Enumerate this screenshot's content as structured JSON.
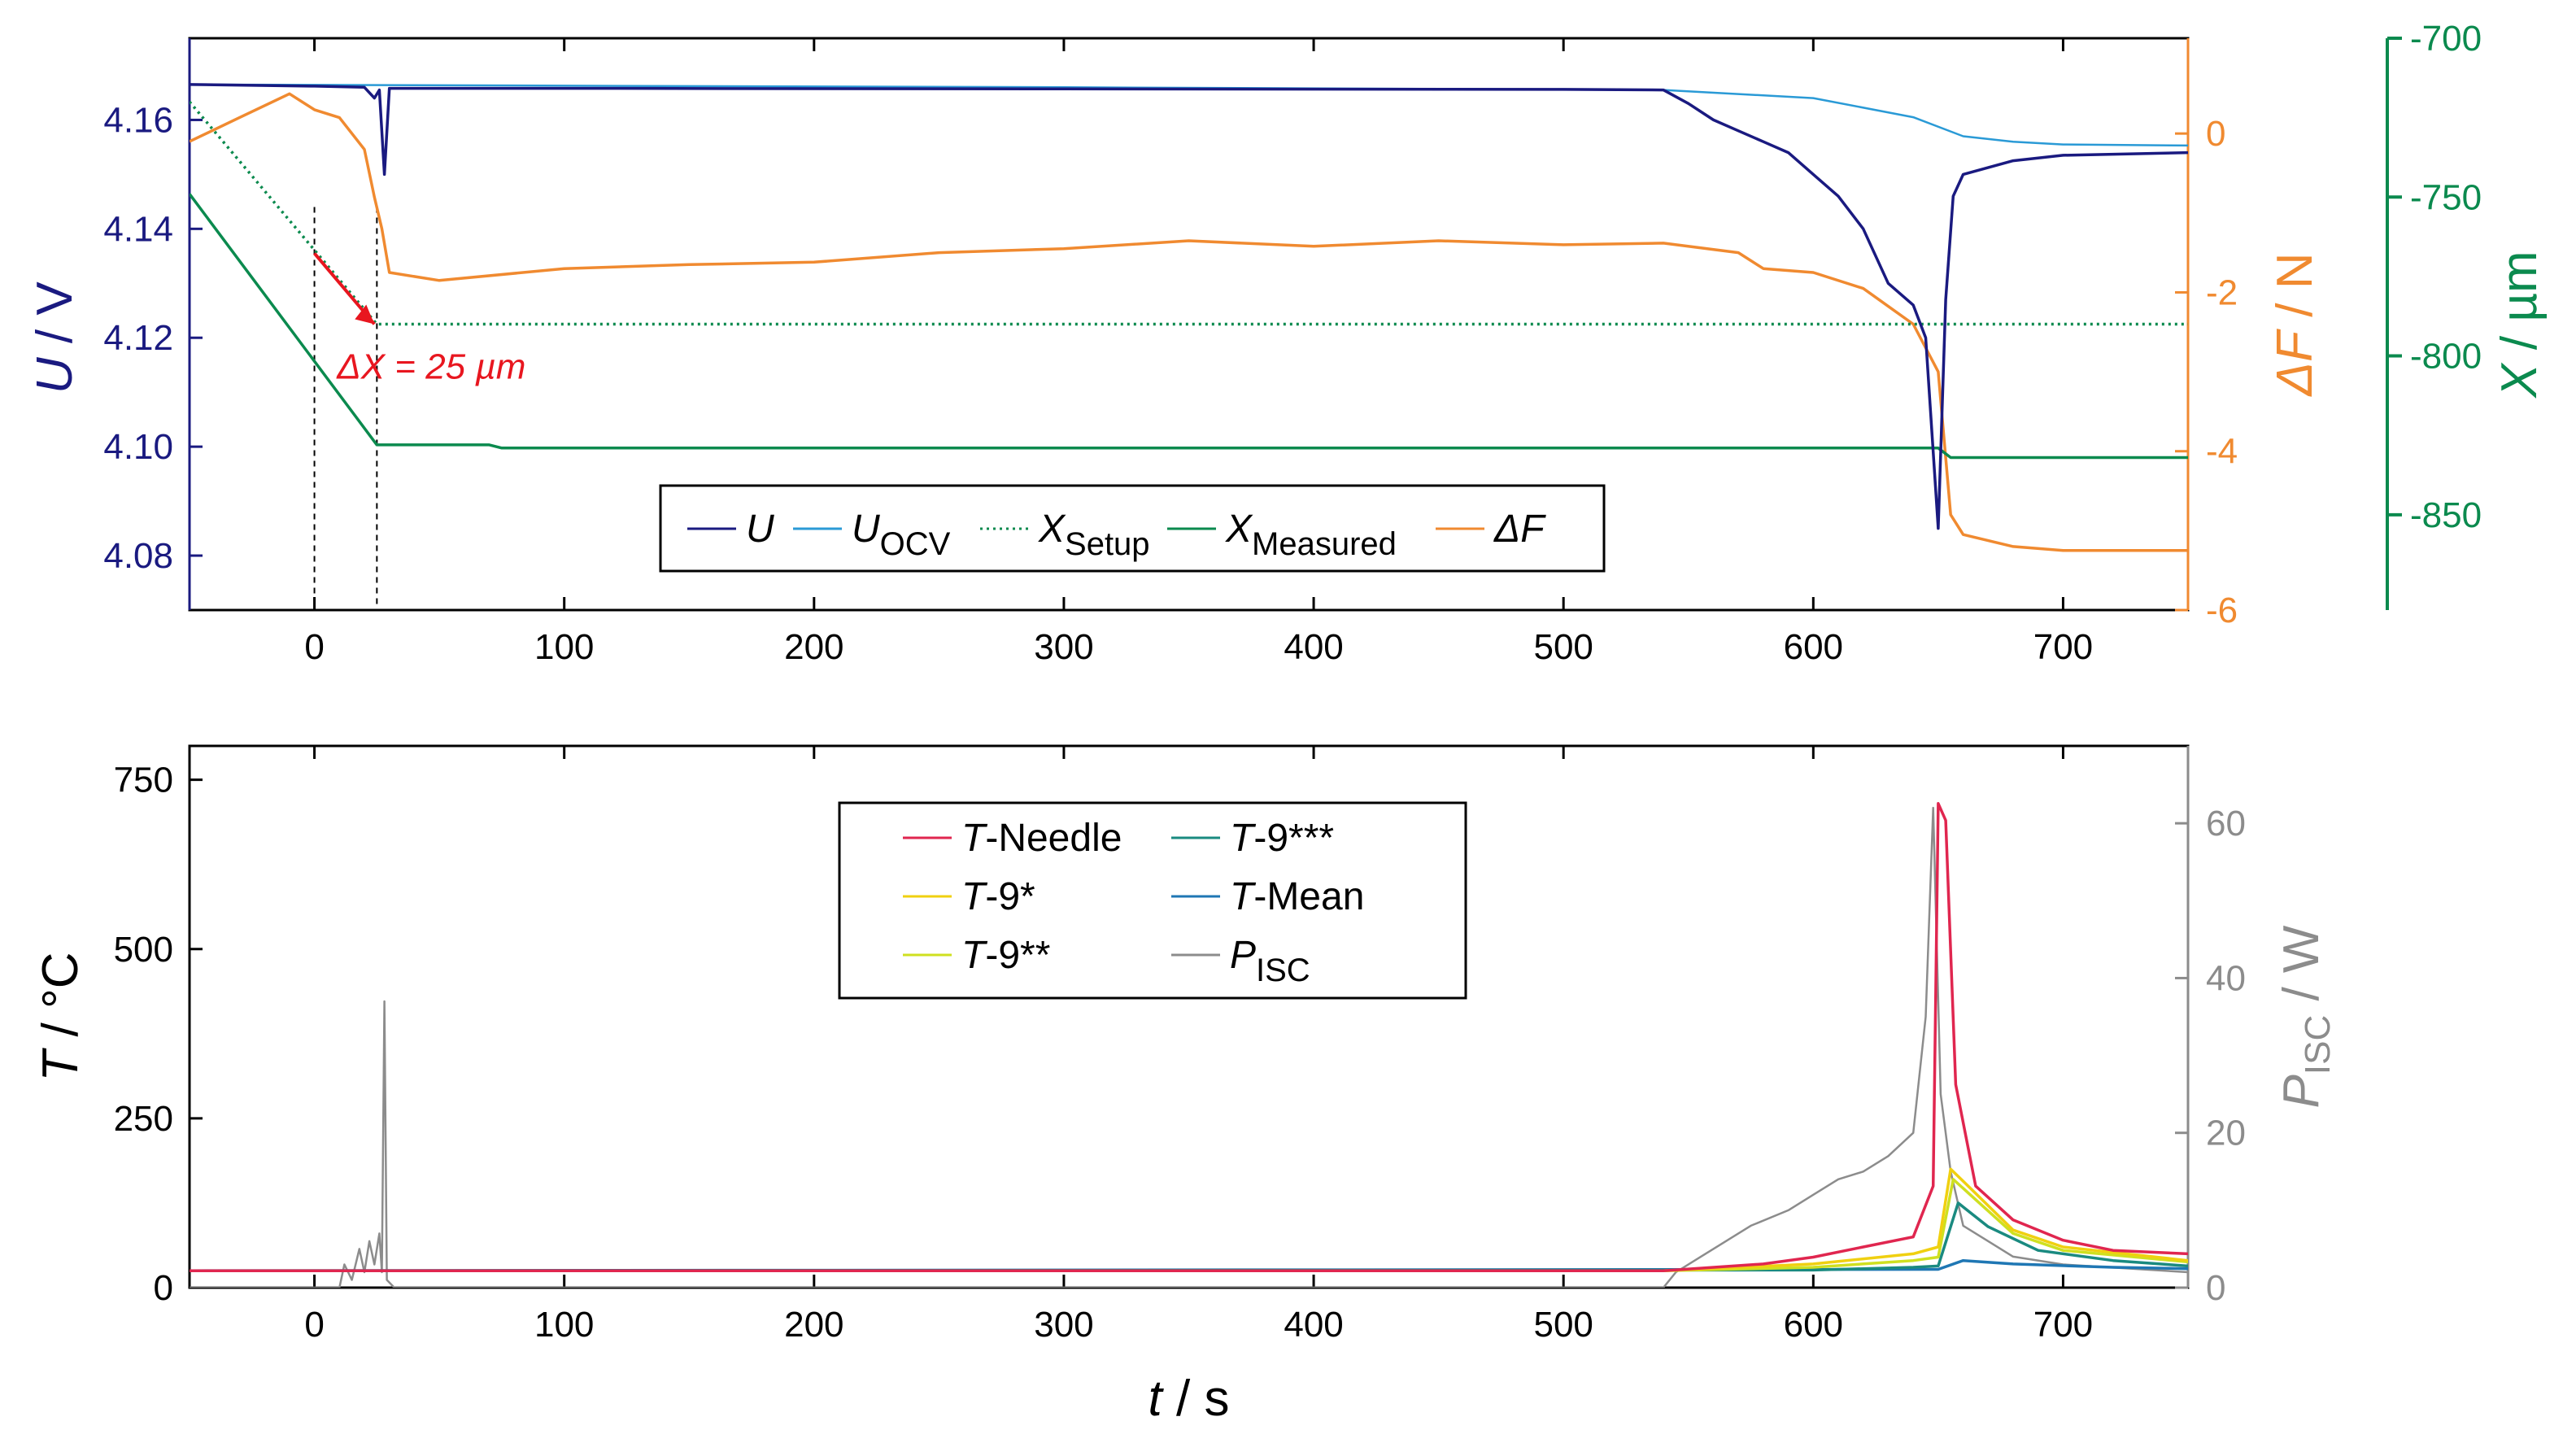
{
  "chart_data": [
    {
      "type": "line",
      "panel": "top",
      "x_axis": {
        "label_var": "t",
        "label_rest": " / s",
        "lim": [
          -50,
          750
        ],
        "ticks": [
          0,
          100,
          200,
          300,
          400,
          500,
          600,
          700
        ]
      },
      "y_left": {
        "label_var": "U",
        "label_rest": " / V",
        "lim": [
          4.07,
          4.175
        ],
        "ticks": [
          4.08,
          4.1,
          4.12,
          4.14,
          4.16
        ],
        "tick_labels": [
          "4.08",
          "4.10",
          "4.12",
          "4.14",
          "4.16"
        ],
        "color": "#1a1a80"
      },
      "y_right1": {
        "label_var": "ΔF",
        "label_rest": " / N",
        "lim": [
          -6,
          1.2
        ],
        "ticks": [
          -6,
          -4,
          -2,
          0
        ],
        "tick_labels": [
          "-6",
          "-4",
          "-2",
          "0"
        ],
        "color": "#f08a30"
      },
      "y_right2": {
        "label_var": "X",
        "label_rest": " / µm",
        "lim": [
          -880,
          -700
        ],
        "ticks": [
          -850,
          -800,
          -750,
          -700
        ],
        "tick_labels": [
          "-850",
          "-800",
          "-750",
          "-700"
        ],
        "color": "#0b8a4e"
      },
      "annotation": "ΔX = 25 µm",
      "markers_t": [
        0,
        25
      ],
      "series": [
        {
          "name": "U",
          "axis": "left",
          "color": "#1a1a80",
          "style": "solid",
          "points": [
            [
              -50,
              4.1665
            ],
            [
              0,
              4.1662
            ],
            [
              20,
              4.166
            ],
            [
              24,
              4.164
            ],
            [
              26,
              4.1655
            ],
            [
              28,
              4.15
            ],
            [
              30,
              4.1658
            ],
            [
              100,
              4.1658
            ],
            [
              300,
              4.1657
            ],
            [
              500,
              4.1656
            ],
            [
              540,
              4.1655
            ],
            [
              550,
              4.163
            ],
            [
              560,
              4.16
            ],
            [
              570,
              4.158
            ],
            [
              580,
              4.156
            ],
            [
              590,
              4.154
            ],
            [
              600,
              4.15
            ],
            [
              610,
              4.146
            ],
            [
              620,
              4.14
            ],
            [
              630,
              4.13
            ],
            [
              640,
              4.126
            ],
            [
              645,
              4.12
            ],
            [
              650,
              4.085
            ],
            [
              653,
              4.127
            ],
            [
              656,
              4.146
            ],
            [
              660,
              4.15
            ],
            [
              680,
              4.1525
            ],
            [
              700,
              4.1535
            ],
            [
              750,
              4.154
            ]
          ]
        },
        {
          "name": "U_OCV",
          "axis": "left",
          "color": "#2a9ad6",
          "style": "solid",
          "points": [
            [
              -50,
              4.1665
            ],
            [
              300,
              4.166
            ],
            [
              540,
              4.1655
            ],
            [
              600,
              4.164
            ],
            [
              640,
              4.1605
            ],
            [
              660,
              4.157
            ],
            [
              680,
              4.156
            ],
            [
              700,
              4.1555
            ],
            [
              750,
              4.1553
            ]
          ]
        },
        {
          "name": "X_Setup",
          "axis": "right2",
          "color": "#0b8a4e",
          "style": "dotted",
          "points": [
            [
              -50,
              -720
            ],
            [
              25,
              -790
            ],
            [
              750,
              -790
            ]
          ]
        },
        {
          "name": "X_Measured",
          "axis": "right2",
          "color": "#0b8a4e",
          "style": "solid",
          "points": [
            [
              -50,
              -749
            ],
            [
              25,
              -828
            ],
            [
              70,
              -828
            ],
            [
              75,
              -829
            ],
            [
              650,
              -829
            ],
            [
              655,
              -832
            ],
            [
              750,
              -832
            ]
          ]
        },
        {
          "name": "ΔF",
          "axis": "right1",
          "color": "#f08a30",
          "style": "solid",
          "points": [
            [
              -50,
              -0.1
            ],
            [
              -30,
              0.2
            ],
            [
              -10,
              0.5
            ],
            [
              0,
              0.3
            ],
            [
              10,
              0.2
            ],
            [
              20,
              -0.2
            ],
            [
              24,
              -0.8
            ],
            [
              27,
              -1.2
            ],
            [
              30,
              -1.75
            ],
            [
              50,
              -1.85
            ],
            [
              100,
              -1.7
            ],
            [
              150,
              -1.65
            ],
            [
              200,
              -1.62
            ],
            [
              250,
              -1.5
            ],
            [
              300,
              -1.45
            ],
            [
              350,
              -1.35
            ],
            [
              400,
              -1.42
            ],
            [
              450,
              -1.35
            ],
            [
              500,
              -1.4
            ],
            [
              540,
              -1.38
            ],
            [
              570,
              -1.5
            ],
            [
              580,
              -1.7
            ],
            [
              600,
              -1.75
            ],
            [
              620,
              -1.95
            ],
            [
              640,
              -2.4
            ],
            [
              650,
              -3.0
            ],
            [
              655,
              -4.8
            ],
            [
              660,
              -5.05
            ],
            [
              680,
              -5.2
            ],
            [
              700,
              -5.25
            ],
            [
              750,
              -5.25
            ]
          ]
        }
      ]
    },
    {
      "type": "line",
      "panel": "bottom",
      "x_axis": {
        "label_var": "t",
        "label_rest": " / s",
        "lim": [
          -50,
          750
        ],
        "ticks": [
          0,
          100,
          200,
          300,
          400,
          500,
          600,
          700
        ]
      },
      "y_left": {
        "label_var": "T",
        "label_rest": " / °C",
        "lim": [
          0,
          800
        ],
        "ticks": [
          0,
          250,
          500,
          750
        ],
        "tick_labels": [
          "0",
          "250",
          "500",
          "750"
        ],
        "color": "#000000"
      },
      "y_right": {
        "label_var": "P",
        "label_sub": "ISC",
        "label_rest": " / W",
        "lim": [
          0,
          70
        ],
        "ticks": [
          0,
          20,
          40,
          60
        ],
        "tick_labels": [
          "0",
          "20",
          "40",
          "60"
        ],
        "color": "#8c8c8c"
      },
      "series": [
        {
          "name": "T-Needle",
          "axis": "left",
          "color": "#e0264f",
          "points": [
            [
              -50,
              25
            ],
            [
              540,
              25
            ],
            [
              580,
              35
            ],
            [
              600,
              45
            ],
            [
              620,
              60
            ],
            [
              640,
              75
            ],
            [
              648,
              150
            ],
            [
              650,
              715
            ],
            [
              653,
              690
            ],
            [
              657,
              300
            ],
            [
              665,
              150
            ],
            [
              680,
              100
            ],
            [
              700,
              70
            ],
            [
              720,
              55
            ],
            [
              750,
              50
            ]
          ]
        },
        {
          "name": "T-9*",
          "axis": "left",
          "color": "#f0d010",
          "points": [
            [
              -50,
              25
            ],
            [
              540,
              25
            ],
            [
              600,
              35
            ],
            [
              640,
              50
            ],
            [
              650,
              60
            ],
            [
              655,
              175
            ],
            [
              662,
              150
            ],
            [
              680,
              85
            ],
            [
              700,
              60
            ],
            [
              750,
              40
            ]
          ]
        },
        {
          "name": "T-9**",
          "axis": "left",
          "color": "#cfe020",
          "points": [
            [
              -50,
              25
            ],
            [
              540,
              25
            ],
            [
              600,
              30
            ],
            [
              640,
              40
            ],
            [
              650,
              45
            ],
            [
              656,
              160
            ],
            [
              665,
              130
            ],
            [
              680,
              80
            ],
            [
              700,
              55
            ],
            [
              750,
              38
            ]
          ]
        },
        {
          "name": "T-9***",
          "axis": "left",
          "color": "#1a8a80",
          "points": [
            [
              -50,
              25
            ],
            [
              600,
              26
            ],
            [
              640,
              30
            ],
            [
              650,
              32
            ],
            [
              658,
              125
            ],
            [
              670,
              90
            ],
            [
              690,
              55
            ],
            [
              720,
              40
            ],
            [
              750,
              32
            ]
          ]
        },
        {
          "name": "T-Mean",
          "axis": "left",
          "color": "#1f77b4",
          "points": [
            [
              -50,
              25
            ],
            [
              650,
              27
            ],
            [
              660,
              40
            ],
            [
              680,
              35
            ],
            [
              720,
              30
            ],
            [
              750,
              28
            ]
          ]
        },
        {
          "name": "P_ISC",
          "axis": "right",
          "color": "#8c8c8c",
          "points": [
            [
              -50,
              0
            ],
            [
              10,
              0
            ],
            [
              12,
              3
            ],
            [
              15,
              1
            ],
            [
              18,
              5
            ],
            [
              20,
              2
            ],
            [
              22,
              6
            ],
            [
              24,
              3
            ],
            [
              26,
              7
            ],
            [
              27,
              2
            ],
            [
              28,
              37
            ],
            [
              29,
              1
            ],
            [
              32,
              0
            ],
            [
              540,
              0
            ],
            [
              545,
              2
            ],
            [
              555,
              4
            ],
            [
              565,
              6
            ],
            [
              575,
              8
            ],
            [
              590,
              10
            ],
            [
              600,
              12
            ],
            [
              610,
              14
            ],
            [
              620,
              15
            ],
            [
              630,
              17
            ],
            [
              640,
              20
            ],
            [
              645,
              35
            ],
            [
              648,
              62
            ],
            [
              651,
              25
            ],
            [
              655,
              15
            ],
            [
              660,
              8
            ],
            [
              680,
              4
            ],
            [
              700,
              3
            ],
            [
              750,
              2
            ]
          ]
        }
      ]
    }
  ],
  "legend_top": [
    {
      "var": "U",
      "sub": "",
      "color": "#1a1a80",
      "style": "solid"
    },
    {
      "var": "U",
      "sub": "OCV",
      "color": "#2a9ad6",
      "style": "solid"
    },
    {
      "var": "X",
      "sub": "Setup",
      "color": "#0b8a4e",
      "style": "dotted"
    },
    {
      "var": "X",
      "sub": "Measured",
      "color": "#0b8a4e",
      "style": "solid"
    },
    {
      "var": "ΔF",
      "sub": "",
      "color": "#f08a30",
      "style": "solid"
    }
  ],
  "legend_bottom": [
    {
      "var": "T",
      "rest": "-Needle",
      "sub": "",
      "color": "#e0264f"
    },
    {
      "var": "T",
      "rest": "-9***",
      "sub": "",
      "color": "#1a8a80"
    },
    {
      "var": "T",
      "rest": "-9*",
      "sub": "",
      "color": "#f0d010"
    },
    {
      "var": "T",
      "rest": "-Mean",
      "sub": "",
      "color": "#1f77b4"
    },
    {
      "var": "T",
      "rest": "-9**",
      "sub": "",
      "color": "#cfe020"
    },
    {
      "var": "P",
      "rest": "",
      "sub": "ISC",
      "color": "#8c8c8c"
    }
  ]
}
